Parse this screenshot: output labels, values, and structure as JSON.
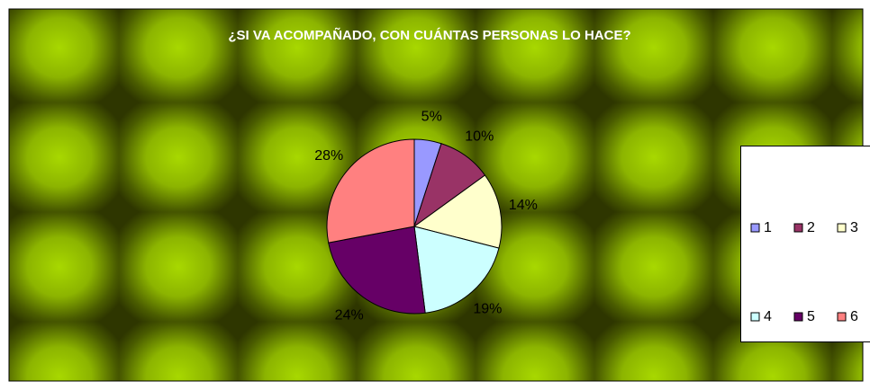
{
  "chart_data": {
    "type": "pie",
    "title": "¿SI VA ACOMPAÑADO, CON CUÁNTAS PERSONAS LO HACE?",
    "categories": [
      "1",
      "2",
      "3",
      "4",
      "5",
      "6"
    ],
    "values": [
      5,
      10,
      14,
      19,
      24,
      28
    ],
    "value_labels": [
      "5%",
      "10%",
      "14%",
      "19%",
      "24%",
      "28%"
    ],
    "colors": [
      "#9999ff",
      "#993366",
      "#ffffcc",
      "#ccffff",
      "#660066",
      "#ff8080"
    ],
    "legend": "right"
  }
}
